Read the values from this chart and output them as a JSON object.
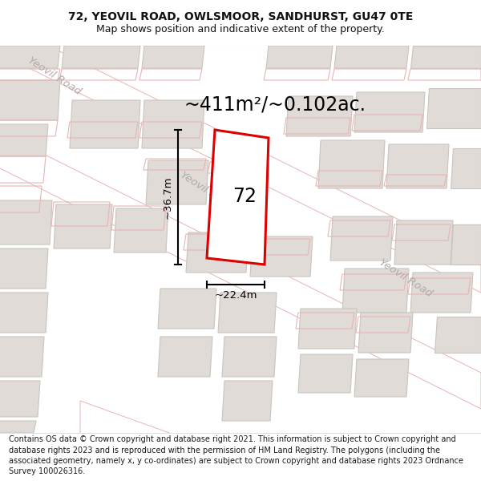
{
  "title_line1": "72, YEOVIL ROAD, OWLSMOOR, SANDHURST, GU47 0TE",
  "title_line2": "Map shows position and indicative extent of the property.",
  "area_text": "~411m²/~0.102ac.",
  "label_72": "72",
  "dim_height": "~36.7m",
  "dim_width": "~22.4m",
  "footer_text": "Contains OS data © Crown copyright and database right 2021. This information is subject to Crown copyright and database rights 2023 and is reproduced with the permission of HM Land Registry. The polygons (including the associated geometry, namely x, y co-ordinates) are subject to Crown copyright and database rights 2023 Ordnance Survey 100026316.",
  "map_bg": "#f5f3f0",
  "road_line_color": "#e8b4b4",
  "road_fill": "#ffffff",
  "building_fill": "#e0dbd6",
  "building_edge": "#c8c4be",
  "plot_color": "#dd0000",
  "text_color_road": "#b0aaaa",
  "title_color": "#111111",
  "road_band_color": "#f0eeec"
}
